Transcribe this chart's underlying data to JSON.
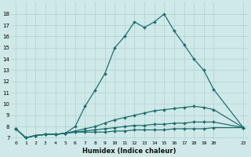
{
  "title": "",
  "xlabel": "Humidex (Indice chaleur)",
  "ylabel": "",
  "bg_color": "#cfe8e8",
  "line_color": "#1e7070",
  "grid_color": "#b8d8d8",
  "xlim": [
    -0.5,
    23.5
  ],
  "ylim": [
    6.8,
    19.0
  ],
  "yticks": [
    7,
    8,
    9,
    10,
    11,
    12,
    13,
    14,
    15,
    16,
    17,
    18
  ],
  "xticks": [
    0,
    1,
    2,
    3,
    4,
    5,
    6,
    7,
    8,
    9,
    10,
    11,
    12,
    13,
    14,
    15,
    16,
    17,
    18,
    19,
    20,
    23
  ],
  "series": [
    {
      "x": [
        0,
        1,
        2,
        3,
        4,
        5,
        6,
        7,
        8,
        9,
        10,
        11,
        12,
        13,
        14,
        15,
        16,
        17,
        18,
        19,
        20,
        23
      ],
      "y": [
        7.8,
        7.0,
        7.2,
        7.3,
        7.3,
        7.4,
        8.0,
        9.8,
        11.2,
        12.7,
        15.0,
        16.0,
        17.3,
        16.8,
        17.3,
        18.0,
        16.5,
        15.3,
        14.0,
        13.0,
        11.3,
        7.9
      ]
    },
    {
      "x": [
        0,
        1,
        2,
        3,
        4,
        5,
        6,
        7,
        8,
        9,
        10,
        11,
        12,
        13,
        14,
        15,
        16,
        17,
        18,
        19,
        20,
        23
      ],
      "y": [
        7.8,
        7.0,
        7.2,
        7.3,
        7.3,
        7.4,
        7.6,
        7.8,
        8.0,
        8.3,
        8.6,
        8.8,
        9.0,
        9.2,
        9.4,
        9.5,
        9.6,
        9.7,
        9.8,
        9.7,
        9.5,
        7.9
      ]
    },
    {
      "x": [
        0,
        1,
        2,
        3,
        4,
        5,
        6,
        7,
        8,
        9,
        10,
        11,
        12,
        13,
        14,
        15,
        16,
        17,
        18,
        19,
        20,
        23
      ],
      "y": [
        7.8,
        7.0,
        7.2,
        7.3,
        7.3,
        7.4,
        7.5,
        7.6,
        7.7,
        7.8,
        7.9,
        8.0,
        8.1,
        8.1,
        8.2,
        8.2,
        8.3,
        8.3,
        8.4,
        8.4,
        8.4,
        7.9
      ]
    },
    {
      "x": [
        0,
        1,
        2,
        3,
        4,
        5,
        6,
        7,
        8,
        9,
        10,
        11,
        12,
        13,
        14,
        15,
        16,
        17,
        18,
        19,
        20,
        23
      ],
      "y": [
        7.8,
        7.0,
        7.2,
        7.3,
        7.3,
        7.4,
        7.5,
        7.5,
        7.5,
        7.5,
        7.6,
        7.6,
        7.7,
        7.7,
        7.7,
        7.7,
        7.8,
        7.8,
        7.8,
        7.8,
        7.9,
        7.9
      ]
    }
  ]
}
